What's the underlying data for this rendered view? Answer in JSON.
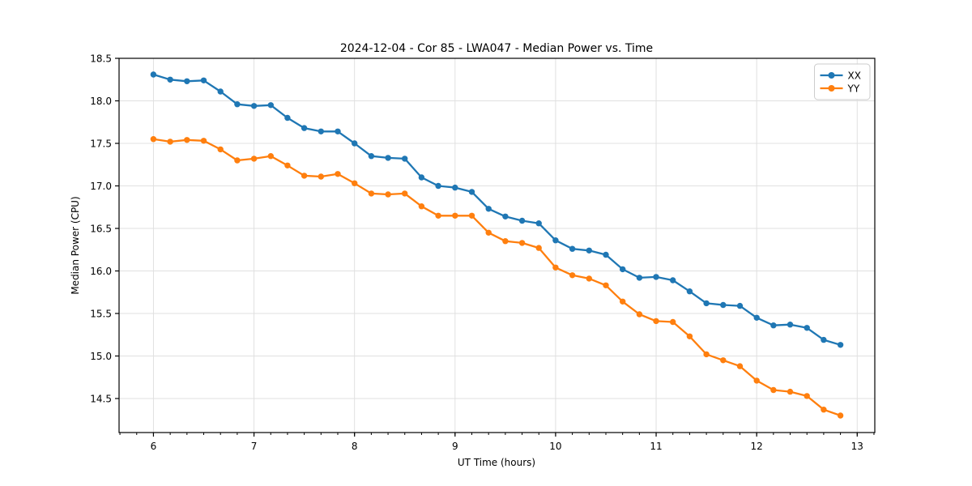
{
  "window": {
    "background": "#ffffff"
  },
  "chart_data": {
    "type": "line",
    "title": "2024-12-04 - Cor 85 - LWA047 - Median Power vs. Time",
    "xlabel": "UT Time (hours)",
    "ylabel": "Median Power (CPU)",
    "xlim": [
      5.658,
      13.175
    ],
    "ylim": [
      14.1,
      18.5
    ],
    "x_major_ticks": [
      6,
      7,
      8,
      9,
      10,
      11,
      12,
      13
    ],
    "x_minor_step": 0.166667,
    "y_major_ticks": [
      14.5,
      15.0,
      15.5,
      16.0,
      16.5,
      17.0,
      17.5,
      18.0,
      18.5
    ],
    "grid": true,
    "legend_position": "upper right",
    "x": [
      6,
      6.1667,
      6.3333,
      6.5,
      6.6667,
      6.8333,
      7,
      7.1667,
      7.3333,
      7.5,
      7.6667,
      7.8333,
      8,
      8.1667,
      8.3333,
      8.5,
      8.6667,
      8.8333,
      9,
      9.1667,
      9.3333,
      9.5,
      9.6667,
      9.8333,
      10,
      10.1667,
      10.3333,
      10.5,
      10.6667,
      10.8333,
      11,
      11.1667,
      11.3333,
      11.5,
      11.6667,
      11.8333,
      12,
      12.1667,
      12.3333,
      12.5,
      12.6667,
      12.8333
    ],
    "series": [
      {
        "name": "XX",
        "color": "#1f77b4",
        "values": [
          18.31,
          18.25,
          18.23,
          18.24,
          18.11,
          17.96,
          17.94,
          17.95,
          17.8,
          17.68,
          17.64,
          17.64,
          17.5,
          17.35,
          17.33,
          17.32,
          17.1,
          17.0,
          16.98,
          16.93,
          16.73,
          16.64,
          16.59,
          16.56,
          16.36,
          16.26,
          16.24,
          16.19,
          16.02,
          15.92,
          15.93,
          15.89,
          15.76,
          15.62,
          15.6,
          15.59,
          15.45,
          15.36,
          15.37,
          15.33,
          15.19,
          15.13
        ]
      },
      {
        "name": "YY",
        "color": "#ff7f0e",
        "values": [
          17.55,
          17.52,
          17.54,
          17.53,
          17.43,
          17.3,
          17.32,
          17.35,
          17.24,
          17.12,
          17.11,
          17.14,
          17.03,
          16.91,
          16.9,
          16.91,
          16.76,
          16.65,
          16.65,
          16.65,
          16.45,
          16.35,
          16.33,
          16.27,
          16.04,
          15.95,
          15.91,
          15.83,
          15.64,
          15.49,
          15.41,
          15.4,
          15.23,
          15.02,
          14.95,
          14.88,
          14.71,
          14.6,
          14.58,
          14.53,
          14.37,
          14.3
        ]
      }
    ],
    "style": {
      "grid_color": "#e0e0e0",
      "spine_color": "#000000",
      "legend_border_color": "#cccccc",
      "legend_bg": "#ffffff",
      "line_width": 2.3,
      "marker_radius": 3.7
    }
  }
}
